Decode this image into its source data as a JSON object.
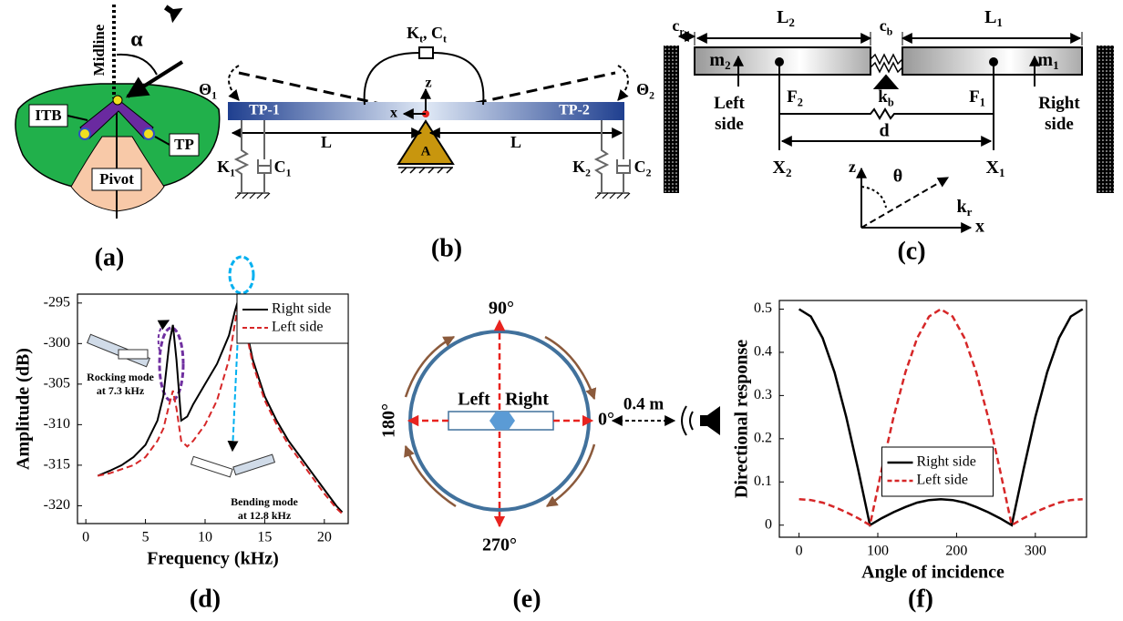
{
  "panels": {
    "a": {
      "label": "(a)",
      "midline": "Midline",
      "alpha": "α",
      "itb": "ITB",
      "tp": "TP",
      "pivot": "Pivot"
    },
    "b": {
      "label": "(b)",
      "theta1": [
        "Θ",
        "1"
      ],
      "theta2": [
        "Θ",
        "2"
      ],
      "kt_ct": [
        "K",
        "t",
        ", C",
        "t"
      ],
      "z": "z",
      "x": "x",
      "tp1": "TP-1",
      "tp2": "TP-2",
      "l_left": "L",
      "l_right": "L",
      "a": "A",
      "k1": [
        "K",
        "1"
      ],
      "c1": [
        "C",
        "1"
      ],
      "k2": [
        "K",
        "2"
      ],
      "c2": [
        "C",
        "2"
      ]
    },
    "c": {
      "label": "(c)",
      "cr": [
        "c",
        "r"
      ],
      "l2": [
        "L",
        "2"
      ],
      "cb": [
        "c",
        "b"
      ],
      "l1": [
        "L",
        "1"
      ],
      "m2": [
        "m",
        "2"
      ],
      "m1": [
        "m",
        "1"
      ],
      "left_side": {
        "lines": [
          "Left",
          "side"
        ]
      },
      "right_side": {
        "lines": [
          "Right",
          "side"
        ]
      },
      "f2": [
        "F",
        "2"
      ],
      "f1": [
        "F",
        "1"
      ],
      "kb": [
        "k",
        "b"
      ],
      "d": "d",
      "x2": [
        "X",
        "2"
      ],
      "x1": [
        "X",
        "1"
      ],
      "z": "z",
      "theta": "θ",
      "kr": [
        "k",
        "r"
      ],
      "x": "x"
    },
    "d": {
      "label": "(d)"
    },
    "e": {
      "label": "(e)",
      "deg90": "90°",
      "deg180": "180°",
      "deg0": "0°",
      "deg270": "270°",
      "left": "Left",
      "right": "Right",
      "distance": "0.4 m"
    },
    "f": {
      "label": "(f)"
    }
  },
  "chart_data": [
    {
      "type": "line",
      "xlabel": "Frequency (kHz)",
      "ylabel": "Amplitude (dB)",
      "x": [
        1,
        2,
        3,
        4,
        5,
        6,
        6.5,
        7,
        7.3,
        7.6,
        8,
        8.5,
        9,
        10,
        11,
        12,
        12.5,
        12.8,
        13.1,
        13.5,
        14,
        15,
        16,
        17,
        18,
        19,
        20,
        21,
        21.5
      ],
      "series": [
        {
          "name": "Right side",
          "color": "#000000",
          "dash": false,
          "values": [
            -316.3,
            -315.7,
            -315,
            -314,
            -312.5,
            -309.5,
            -306.5,
            -300,
            -297.7,
            -302,
            -309.5,
            -309,
            -307.5,
            -305,
            -302.5,
            -299,
            -296,
            -294.5,
            -295.5,
            -298.5,
            -302,
            -306.5,
            -309.5,
            -312,
            -314,
            -316,
            -318,
            -320,
            -320.8
          ]
        },
        {
          "name": "Left side",
          "color": "#d62728",
          "dash": true,
          "values": [
            -316.3,
            -316,
            -315.5,
            -315,
            -314,
            -312,
            -310.5,
            -307.5,
            -305.8,
            -308,
            -312,
            -312.7,
            -312,
            -310,
            -307,
            -302,
            -297.5,
            -295,
            -296,
            -299,
            -302.5,
            -307,
            -310,
            -312.5,
            -314.5,
            -316.5,
            -318.5,
            -320.3,
            -321
          ]
        }
      ],
      "xlim": [
        -0.7,
        22
      ],
      "ylim": [
        -322.2,
        -293.9
      ],
      "xticks": [
        0,
        5,
        10,
        15,
        20
      ],
      "yticks": [
        -320,
        -315,
        -310,
        -305,
        -300,
        -295
      ],
      "legend": "upper right",
      "annotations": [
        {
          "lines": [
            "Rocking mode",
            "at 7.3 kHz"
          ]
        },
        {
          "lines": [
            "Bending mode",
            "at 12.8 kHz"
          ]
        }
      ]
    },
    {
      "type": "line",
      "xlabel": "Angle of incidence",
      "ylabel": "Directional response",
      "x": [
        0,
        15,
        30,
        45,
        60,
        75,
        90,
        105,
        120,
        135,
        150,
        165,
        180,
        195,
        210,
        225,
        240,
        255,
        270,
        285,
        300,
        315,
        330,
        345,
        360
      ],
      "series": [
        {
          "name": "Right side",
          "color": "#000000",
          "dash": false,
          "values": [
            0.5,
            0.483,
            0.433,
            0.354,
            0.25,
            0.129,
            0,
            0.016,
            0.03,
            0.042,
            0.052,
            0.058,
            0.06,
            0.058,
            0.052,
            0.042,
            0.03,
            0.016,
            0,
            0.129,
            0.25,
            0.354,
            0.433,
            0.483,
            0.5
          ]
        },
        {
          "name": "Left side",
          "color": "#d62728",
          "dash": true,
          "values": [
            0.06,
            0.058,
            0.052,
            0.042,
            0.03,
            0.016,
            0,
            0.129,
            0.25,
            0.354,
            0.433,
            0.483,
            0.5,
            0.483,
            0.433,
            0.354,
            0.25,
            0.129,
            0,
            0.016,
            0.03,
            0.042,
            0.052,
            0.058,
            0.06
          ]
        }
      ],
      "xlim": [
        -25,
        365
      ],
      "ylim": [
        -0.028,
        0.52
      ],
      "xticks": [
        0,
        100,
        200,
        300
      ],
      "yticks": [
        0,
        0.1,
        0.2,
        0.3,
        0.4,
        0.5
      ],
      "legend": "lower center"
    }
  ]
}
